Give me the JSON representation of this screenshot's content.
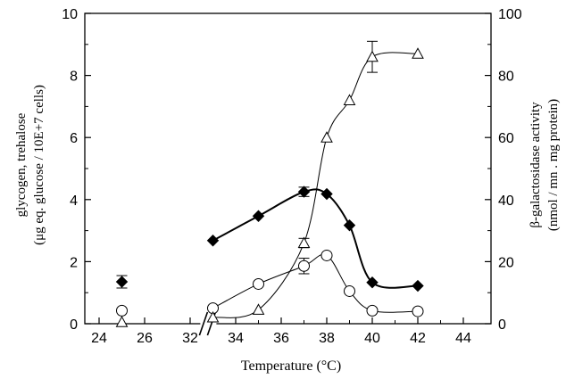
{
  "chart_data": {
    "type": "scatter",
    "xlabel": "Temperature (°C)",
    "ylabel_left": "glycogen, trehalose",
    "ylabel_left_units": "(μg eq. glucose / 10E+7 cells)",
    "ylabel_right": "β-galactosidase activity",
    "ylabel_right_units": "(nmol / mn . mg protein)",
    "x_ticks": [
      "24",
      "26",
      "32",
      "34",
      "36",
      "38",
      "40",
      "42",
      "44"
    ],
    "y_left_ticks": [
      "0",
      "2",
      "4",
      "6",
      "8",
      "10"
    ],
    "y_right_ticks": [
      "0",
      "20",
      "40",
      "60",
      "80",
      "100"
    ],
    "ylim_left": [
      0,
      10
    ],
    "ylim_right": [
      0,
      100
    ],
    "x_break": true,
    "grid": false,
    "series": [
      {
        "marker": "filled-diamond",
        "axis": "left",
        "points": [
          {
            "x": 25,
            "y": 1.35,
            "err": 0.2,
            "connect": false
          },
          {
            "x": 33,
            "y": 2.68
          },
          {
            "x": 35,
            "y": 3.47
          },
          {
            "x": 37,
            "y": 4.25,
            "err": 0.15
          },
          {
            "x": 38,
            "y": 4.18
          },
          {
            "x": 39,
            "y": 3.17
          },
          {
            "x": 40,
            "y": 1.33
          },
          {
            "x": 42,
            "y": 1.22
          }
        ]
      },
      {
        "marker": "open-circle",
        "axis": "left",
        "points": [
          {
            "x": 25,
            "y": 0.42,
            "connect": false
          },
          {
            "x": 33,
            "y": 0.5
          },
          {
            "x": 35,
            "y": 1.28
          },
          {
            "x": 37,
            "y": 1.86,
            "err": 0.25
          },
          {
            "x": 38,
            "y": 2.2
          },
          {
            "x": 39,
            "y": 1.05
          },
          {
            "x": 40,
            "y": 0.42
          },
          {
            "x": 42,
            "y": 0.4
          }
        ]
      },
      {
        "marker": "open-triangle",
        "axis": "right",
        "points": [
          {
            "x": 25,
            "y": 0.5,
            "connect": false
          },
          {
            "x": 33,
            "y": 2
          },
          {
            "x": 35,
            "y": 4.5
          },
          {
            "x": 37,
            "y": 26,
            "err": 1.5
          },
          {
            "x": 38,
            "y": 60
          },
          {
            "x": 39,
            "y": 72
          },
          {
            "x": 40,
            "y": 86,
            "err": 5
          },
          {
            "x": 42,
            "y": 87
          }
        ]
      }
    ]
  }
}
